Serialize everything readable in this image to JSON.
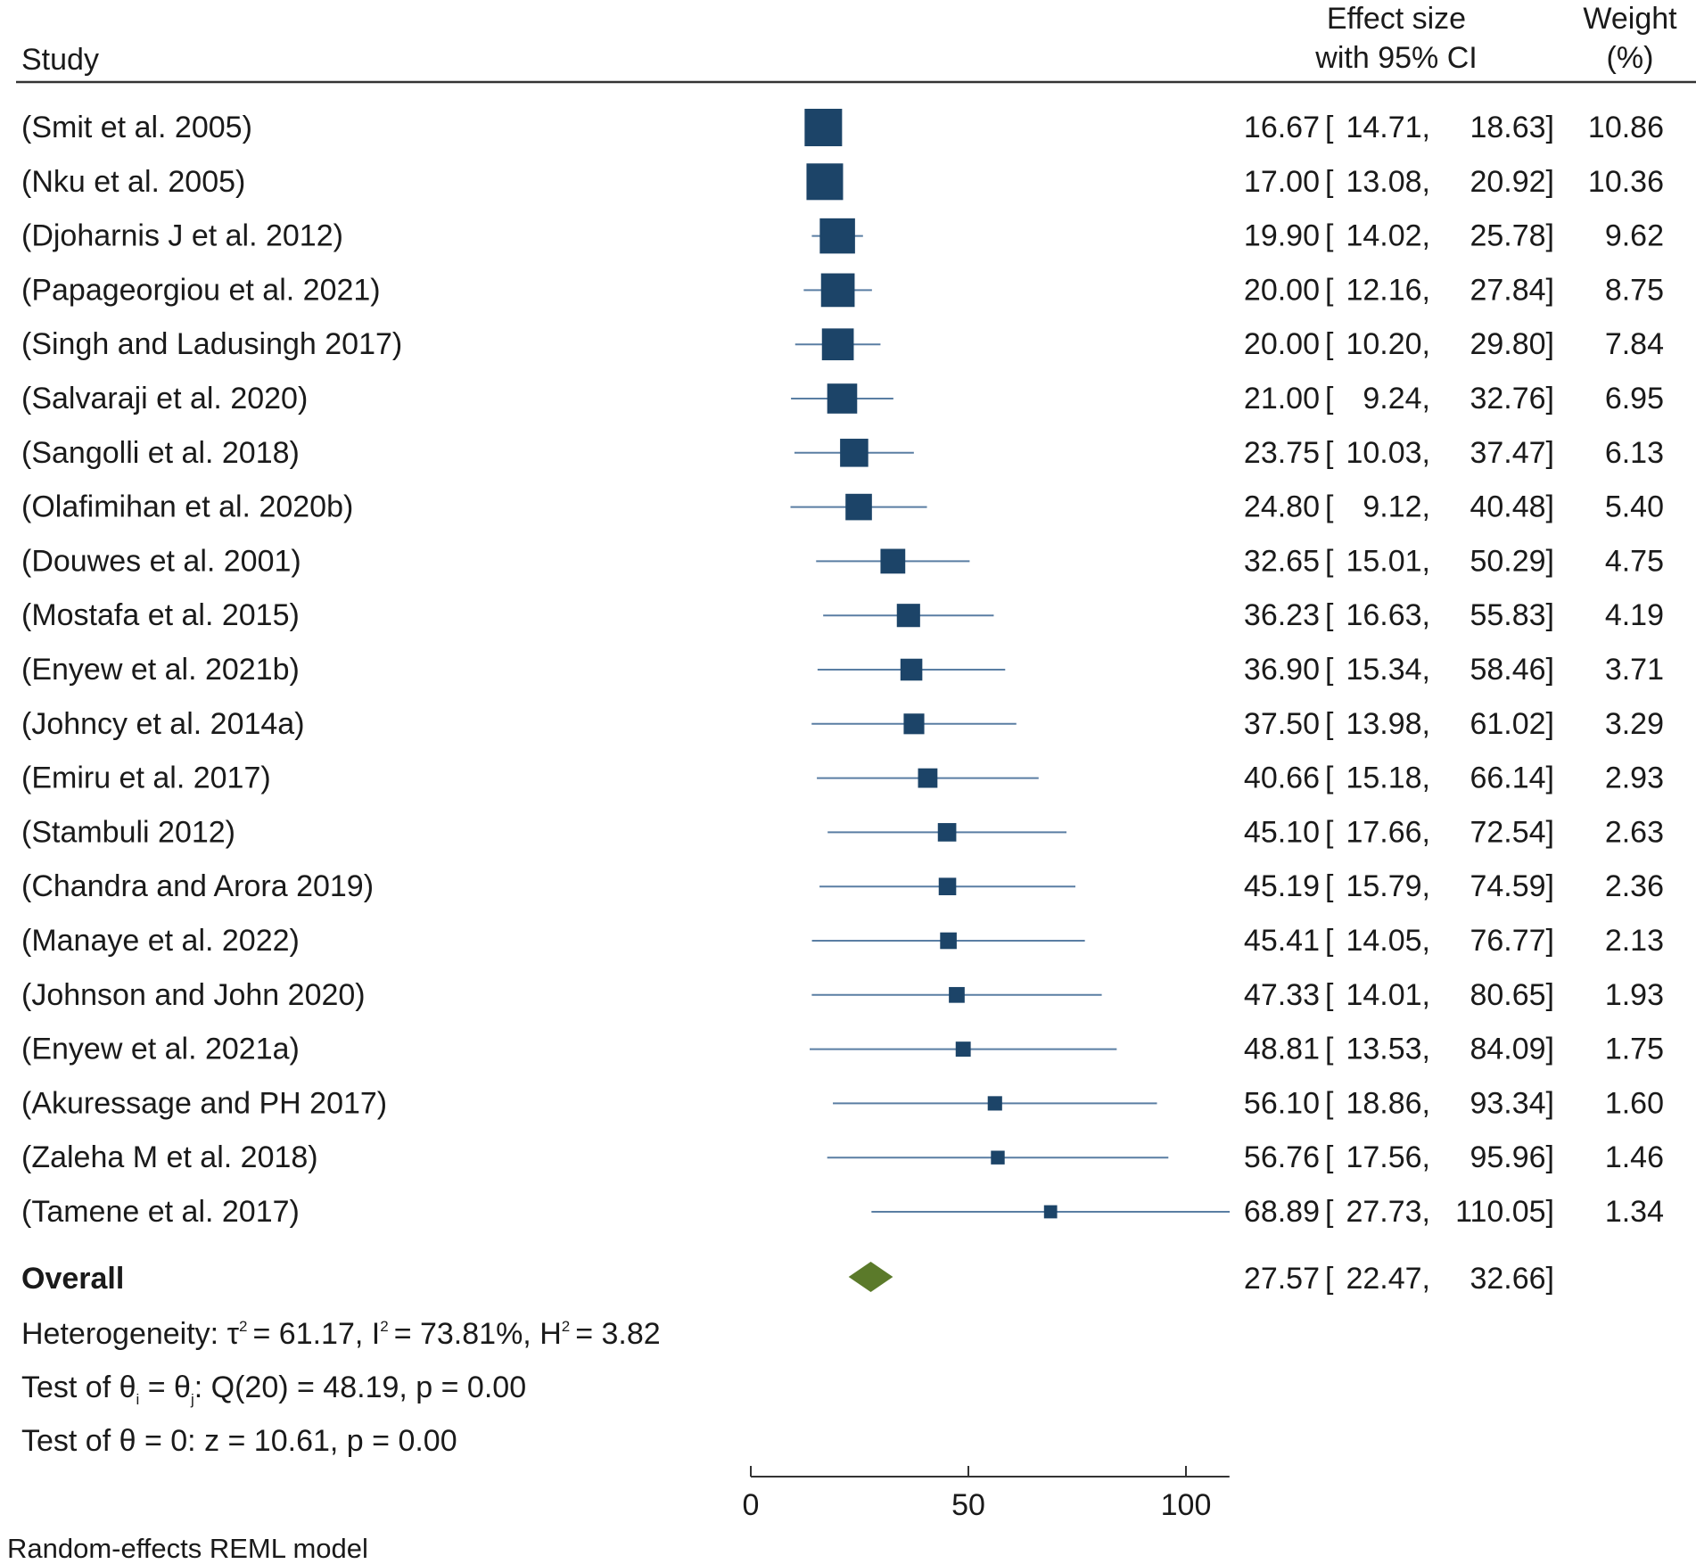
{
  "chart_data": {
    "type": "forest",
    "header": {
      "study": "Study",
      "effect_line1": "Effect size",
      "effect_line2": "with 95% CI",
      "weight_line1": "Weight",
      "weight_line2": "(%)"
    },
    "studies": [
      {
        "label": "(Smit et al. 2005)",
        "es": 16.67,
        "lo": 14.71,
        "hi": 18.63,
        "weight": 10.86,
        "es_text": "16.67",
        "lo_text": "14.71,",
        "hi_text": "18.63]",
        "weight_text": "10.86"
      },
      {
        "label": "(Nku et al. 2005)",
        "es": 17.0,
        "lo": 13.08,
        "hi": 20.92,
        "weight": 10.36,
        "es_text": "17.00",
        "lo_text": "13.08,",
        "hi_text": "20.92]",
        "weight_text": "10.36"
      },
      {
        "label": "(Djoharnis J et al. 2012)",
        "es": 19.9,
        "lo": 14.02,
        "hi": 25.78,
        "weight": 9.62,
        "es_text": "19.90",
        "lo_text": "14.02,",
        "hi_text": "25.78]",
        "weight_text": "9.62"
      },
      {
        "label": "(Papageorgiou et al. 2021)",
        "es": 20.0,
        "lo": 12.16,
        "hi": 27.84,
        "weight": 8.75,
        "es_text": "20.00",
        "lo_text": "12.16,",
        "hi_text": "27.84]",
        "weight_text": "8.75"
      },
      {
        "label": "(Singh and Ladusingh 2017)",
        "es": 20.0,
        "lo": 10.2,
        "hi": 29.8,
        "weight": 7.84,
        "es_text": "20.00",
        "lo_text": "10.20,",
        "hi_text": "29.80]",
        "weight_text": "7.84"
      },
      {
        "label": "(Salvaraji et al. 2020)",
        "es": 21.0,
        "lo": 9.24,
        "hi": 32.76,
        "weight": 6.95,
        "es_text": "21.00",
        "lo_text": "9.24,",
        "hi_text": "32.76]",
        "weight_text": "6.95"
      },
      {
        "label": "(Sangolli et al. 2018)",
        "es": 23.75,
        "lo": 10.03,
        "hi": 37.47,
        "weight": 6.13,
        "es_text": "23.75",
        "lo_text": "10.03,",
        "hi_text": "37.47]",
        "weight_text": "6.13"
      },
      {
        "label": "(Olafimihan et al. 2020b)",
        "es": 24.8,
        "lo": 9.12,
        "hi": 40.48,
        "weight": 5.4,
        "es_text": "24.80",
        "lo_text": "9.12,",
        "hi_text": "40.48]",
        "weight_text": "5.40"
      },
      {
        "label": "(Douwes et al. 2001)",
        "es": 32.65,
        "lo": 15.01,
        "hi": 50.29,
        "weight": 4.75,
        "es_text": "32.65",
        "lo_text": "15.01,",
        "hi_text": "50.29]",
        "weight_text": "4.75"
      },
      {
        "label": "(Mostafa et al. 2015)",
        "es": 36.23,
        "lo": 16.63,
        "hi": 55.83,
        "weight": 4.19,
        "es_text": "36.23",
        "lo_text": "16.63,",
        "hi_text": "55.83]",
        "weight_text": "4.19"
      },
      {
        "label": "(Enyew et al. 2021b)",
        "es": 36.9,
        "lo": 15.34,
        "hi": 58.46,
        "weight": 3.71,
        "es_text": "36.90",
        "lo_text": "15.34,",
        "hi_text": "58.46]",
        "weight_text": "3.71"
      },
      {
        "label": "(Johncy et al. 2014a)",
        "es": 37.5,
        "lo": 13.98,
        "hi": 61.02,
        "weight": 3.29,
        "es_text": "37.50",
        "lo_text": "13.98,",
        "hi_text": "61.02]",
        "weight_text": "3.29"
      },
      {
        "label": "(Emiru et al. 2017)",
        "es": 40.66,
        "lo": 15.18,
        "hi": 66.14,
        "weight": 2.93,
        "es_text": "40.66",
        "lo_text": "15.18,",
        "hi_text": "66.14]",
        "weight_text": "2.93"
      },
      {
        "label": "(Stambuli 2012)",
        "es": 45.1,
        "lo": 17.66,
        "hi": 72.54,
        "weight": 2.63,
        "es_text": "45.10",
        "lo_text": "17.66,",
        "hi_text": "72.54]",
        "weight_text": "2.63"
      },
      {
        "label": "(Chandra and Arora 2019)",
        "es": 45.19,
        "lo": 15.79,
        "hi": 74.59,
        "weight": 2.36,
        "es_text": "45.19",
        "lo_text": "15.79,",
        "hi_text": "74.59]",
        "weight_text": "2.36"
      },
      {
        "label": "(Manaye et al. 2022)",
        "es": 45.41,
        "lo": 14.05,
        "hi": 76.77,
        "weight": 2.13,
        "es_text": "45.41",
        "lo_text": "14.05,",
        "hi_text": "76.77]",
        "weight_text": "2.13"
      },
      {
        "label": "(Johnson and John 2020)",
        "es": 47.33,
        "lo": 14.01,
        "hi": 80.65,
        "weight": 1.93,
        "es_text": "47.33",
        "lo_text": "14.01,",
        "hi_text": "80.65]",
        "weight_text": "1.93"
      },
      {
        "label": "(Enyew et al. 2021a)",
        "es": 48.81,
        "lo": 13.53,
        "hi": 84.09,
        "weight": 1.75,
        "es_text": "48.81",
        "lo_text": "13.53,",
        "hi_text": "84.09]",
        "weight_text": "1.75"
      },
      {
        "label": "(Akuressage and PH 2017)",
        "es": 56.1,
        "lo": 18.86,
        "hi": 93.34,
        "weight": 1.6,
        "es_text": "56.10",
        "lo_text": "18.86,",
        "hi_text": "93.34]",
        "weight_text": "1.60"
      },
      {
        "label": "(Zaleha M et al. 2018)",
        "es": 56.76,
        "lo": 17.56,
        "hi": 95.96,
        "weight": 1.46,
        "es_text": "56.76",
        "lo_text": "17.56,",
        "hi_text": "95.96]",
        "weight_text": "1.46"
      },
      {
        "label": "(Tamene et al. 2017)",
        "es": 68.89,
        "lo": 27.73,
        "hi": 110.05,
        "weight": 1.34,
        "es_text": "68.89",
        "lo_text": "27.73,",
        "hi_text": "110.05]",
        "weight_text": "1.34"
      }
    ],
    "overall": {
      "label": "Overall",
      "es": 27.57,
      "lo": 22.47,
      "hi": 32.66,
      "es_text": "27.57",
      "lo_text": "22.47,",
      "hi_text": "32.66]"
    },
    "heterogeneity": {
      "prefix": "Heterogeneity: τ",
      "tau2": "= 61.17, I",
      "i2": "= 73.81%, H",
      "h2": "= 3.82",
      "sup": "2"
    },
    "test_theta_i": {
      "prefix": "Test of θ",
      "sub_i": "i",
      "mid": " = θ",
      "sub_j": "j",
      "rest": ": Q(20) = 48.19, p = 0.00"
    },
    "test_theta_0": "Test of θ = 0: z = 10.61, p = 0.00",
    "x_axis": {
      "ticks": [
        0,
        50,
        100
      ],
      "tick_labels": [
        "0",
        "50",
        "100"
      ],
      "range": [
        0,
        110
      ]
    },
    "note": "Random-effects REML model",
    "colors": {
      "marker": "#1c4468",
      "ci_line": "#5a7ea3",
      "diamond": "#5b7a2a",
      "rule": "#333333"
    }
  }
}
